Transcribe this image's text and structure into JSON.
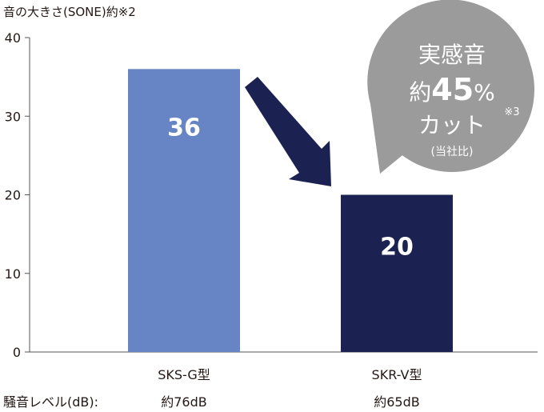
{
  "chart_data": {
    "type": "bar",
    "ylabel": "音の大きさ(SONE)約※2",
    "ylim": [
      0,
      40
    ],
    "yticks": [
      0,
      10,
      20,
      30,
      40
    ],
    "categories": [
      "SKS-G型",
      "SKR-V型"
    ],
    "values": [
      36,
      20
    ],
    "bar_colors": [
      "#6784c4",
      "#1b2150"
    ],
    "noise_label": "騒音レベル(dB):",
    "noise_values": [
      "約76dB",
      "約65dB"
    ],
    "annotation": {
      "line1": "実感音",
      "line2_prefix": "約",
      "line2_value": "45",
      "line2_suffix": "%",
      "line3": "カット",
      "line4": "(当社比)",
      "note": "※3",
      "bubble_color": "#9b9b9b",
      "arrow_color": "#1b2150"
    }
  }
}
